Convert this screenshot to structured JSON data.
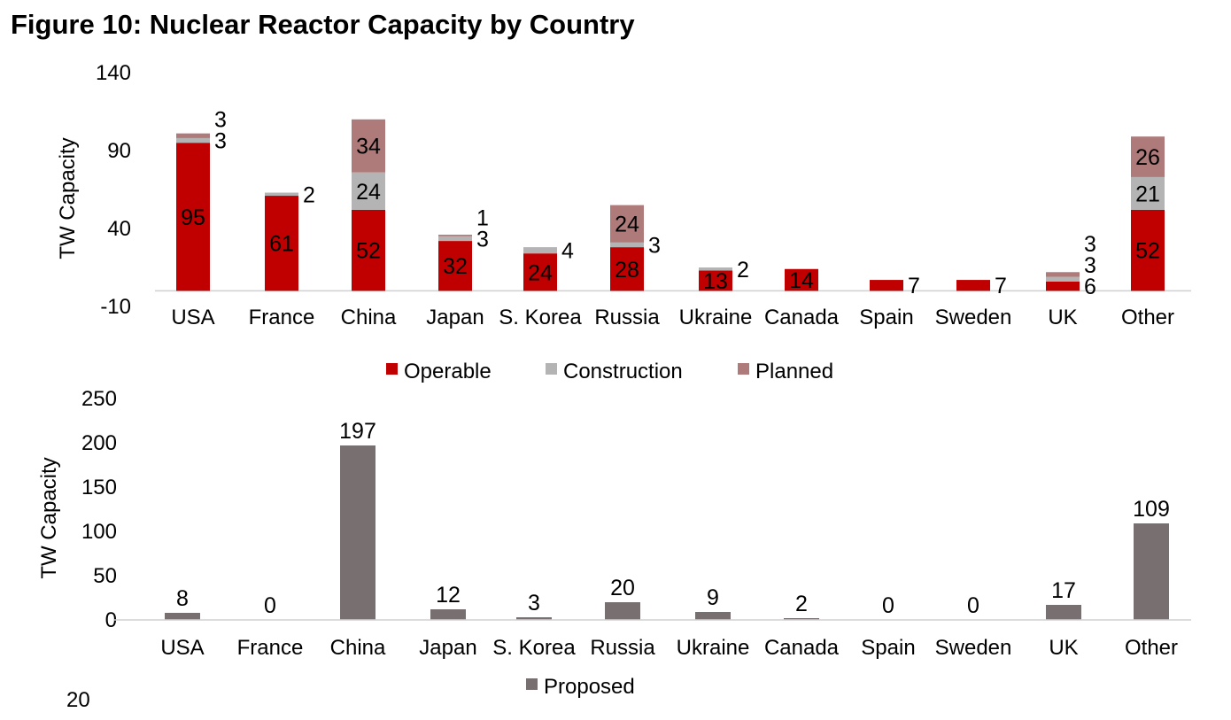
{
  "page": {
    "footer_number": "20"
  },
  "chart_data": [
    {
      "type": "bar",
      "stacked": true,
      "title": "Figure 10: Nuclear Reactor Capacity by Country",
      "xlabel": "",
      "ylabel": "TW Capacity",
      "ylim": [
        -10,
        140
      ],
      "yticks": [
        -10,
        40,
        90,
        140
      ],
      "grid": false,
      "legend": "bottom",
      "categories": [
        "USA",
        "France",
        "China",
        "Japan",
        "S. Korea",
        "Russia",
        "Ukraine",
        "Canada",
        "Spain",
        "Sweden",
        "UK",
        "Other"
      ],
      "series": [
        {
          "name": "Operable",
          "color": "#C00000",
          "values": [
            95,
            61,
            52,
            32,
            24,
            28,
            13,
            14,
            7,
            7,
            6,
            52
          ]
        },
        {
          "name": "Construction",
          "color": "#B4B4B4",
          "values": [
            3,
            2,
            24,
            3,
            4,
            3,
            2,
            0,
            0,
            0,
            3,
            21
          ]
        },
        {
          "name": "Planned",
          "color": "#AE7A7A",
          "values": [
            3,
            0,
            34,
            1,
            0,
            24,
            0,
            0,
            0,
            0,
            3,
            26
          ]
        }
      ]
    },
    {
      "type": "bar",
      "title": "",
      "xlabel": "",
      "ylabel": "TW Capacity",
      "ylim": [
        0,
        250
      ],
      "yticks": [
        0,
        50,
        100,
        150,
        200,
        250
      ],
      "grid": false,
      "legend": "bottom",
      "categories": [
        "USA",
        "France",
        "China",
        "Japan",
        "S. Korea",
        "Russia",
        "Ukraine",
        "Canada",
        "Spain",
        "Sweden",
        "UK",
        "Other"
      ],
      "series": [
        {
          "name": "Proposed",
          "color": "#787070",
          "values": [
            8,
            0,
            197,
            12,
            3,
            20,
            9,
            2,
            0,
            0,
            17,
            109
          ]
        }
      ]
    }
  ]
}
